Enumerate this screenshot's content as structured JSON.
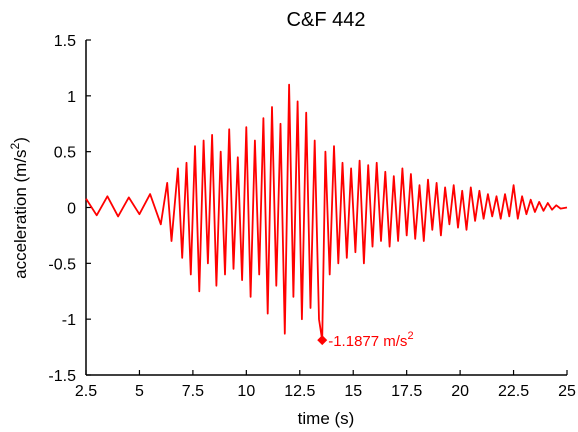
{
  "chart_data": {
    "type": "line",
    "title": "C&F 442",
    "xlabel": "time (s)",
    "ylabel": "acceleration (m/s²)",
    "xlim": [
      2.5,
      25
    ],
    "ylim": [
      -1.5,
      1.5
    ],
    "x_ticks": [
      "2.5",
      "5",
      "7.5",
      "10",
      "12.5",
      "15",
      "17.5",
      "20",
      "22.5",
      "25"
    ],
    "y_ticks": [
      "1.5",
      "1",
      "0.5",
      "0",
      "-0.5",
      "-1",
      "-1.5"
    ],
    "grid": false,
    "legend": "none",
    "series_color": "#ff0000",
    "series": [
      {
        "x": [
          2.5,
          3.0,
          3.5,
          4.0,
          4.5,
          5.0,
          5.5,
          6.0,
          6.3,
          6.5,
          6.8,
          7.0,
          7.2,
          7.4,
          7.6,
          7.8,
          8.0,
          8.2,
          8.4,
          8.6,
          8.8,
          9.0,
          9.2,
          9.4,
          9.6,
          9.8,
          10.0,
          10.2,
          10.4,
          10.6,
          10.8,
          11.0,
          11.2,
          11.4,
          11.6,
          11.8,
          12.0,
          12.2,
          12.4,
          12.6,
          12.8,
          13.0,
          13.2,
          13.4,
          13.55,
          13.7,
          13.9,
          14.1,
          14.3,
          14.5,
          14.7,
          14.9,
          15.1,
          15.3,
          15.5,
          15.7,
          15.9,
          16.1,
          16.3,
          16.5,
          16.7,
          16.9,
          17.1,
          17.3,
          17.5,
          17.7,
          17.9,
          18.1,
          18.3,
          18.5,
          18.7,
          18.9,
          19.1,
          19.3,
          19.5,
          19.7,
          19.9,
          20.1,
          20.3,
          20.5,
          20.7,
          20.9,
          21.1,
          21.3,
          21.5,
          21.7,
          21.9,
          22.1,
          22.3,
          22.5,
          22.7,
          22.9,
          23.1,
          23.3,
          23.5,
          23.7,
          23.9,
          24.1,
          24.3,
          24.5,
          24.7,
          25.0
        ],
        "values": [
          0.08,
          -0.07,
          0.1,
          -0.08,
          0.09,
          -0.06,
          0.12,
          -0.15,
          0.22,
          -0.3,
          0.35,
          -0.45,
          0.4,
          -0.6,
          0.55,
          -0.75,
          0.6,
          -0.5,
          0.65,
          -0.7,
          0.5,
          -0.6,
          0.7,
          -0.55,
          0.45,
          -0.65,
          0.72,
          -0.8,
          0.6,
          -0.6,
          0.8,
          -0.95,
          0.9,
          -0.7,
          0.75,
          -1.13,
          1.1,
          -0.8,
          0.95,
          -1.0,
          0.85,
          -0.9,
          0.6,
          -1.0,
          -1.1877,
          0.5,
          -0.6,
          0.55,
          -0.5,
          0.4,
          -0.45,
          0.35,
          -0.4,
          0.42,
          -0.5,
          0.38,
          -0.35,
          0.4,
          -0.3,
          0.32,
          -0.35,
          0.28,
          -0.3,
          0.35,
          -0.25,
          0.3,
          -0.28,
          0.2,
          -0.3,
          0.25,
          -0.2,
          0.22,
          -0.25,
          0.18,
          -0.15,
          0.2,
          -0.18,
          0.15,
          -0.2,
          0.18,
          -0.12,
          0.15,
          -0.1,
          0.12,
          -0.08,
          0.1,
          -0.1,
          0.12,
          -0.08,
          0.2,
          -0.1,
          0.1,
          -0.06,
          0.07,
          -0.04,
          0.05,
          -0.03,
          0.04,
          -0.02,
          0.02,
          -0.01,
          0.0
        ]
      }
    ],
    "annotation": {
      "x": 13.55,
      "y": -1.1877,
      "text": "-1.1877 m/s",
      "superscript": "2"
    }
  }
}
